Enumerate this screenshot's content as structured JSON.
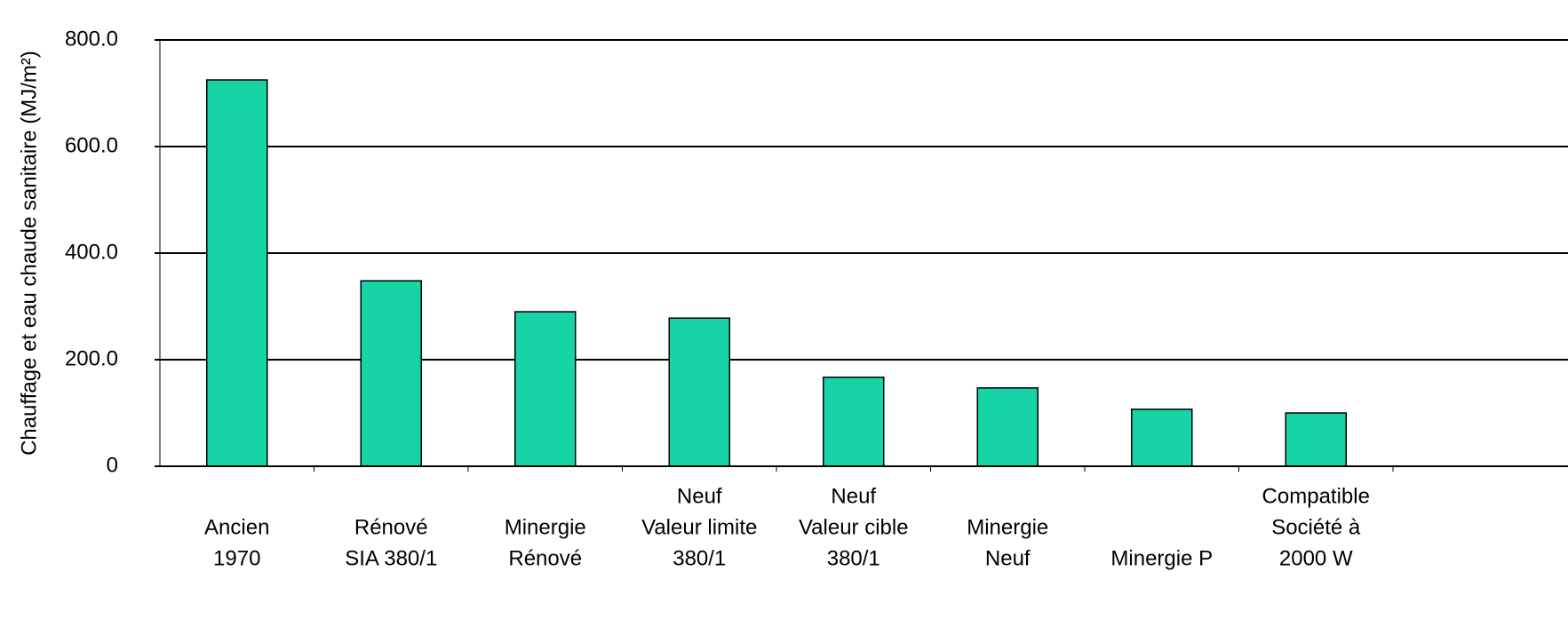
{
  "chart_data": {
    "type": "bar",
    "y_label": "Chauffage et eau chaude sanitaire (MJ/m²)",
    "categories": [
      [
        "Ancien",
        "1970"
      ],
      [
        "Rénové",
        "SIA 380/1"
      ],
      [
        "Minergie",
        "Rénové"
      ],
      [
        "Neuf",
        "Valeur limite",
        "380/1"
      ],
      [
        "Neuf",
        "Valeur cible",
        "380/1"
      ],
      [
        "Minergie",
        "Neuf"
      ],
      [
        "Minergie P"
      ],
      [
        "Compatible",
        "Société à",
        "2000 W"
      ]
    ],
    "values": [
      725,
      348,
      290,
      278,
      167,
      147,
      107,
      100
    ],
    "color": "#17d4a6",
    "ylim": [
      0,
      800
    ],
    "yticks": [
      0,
      {
        "value": 200,
        "label": "200.0"
      },
      {
        "value": 400,
        "label": "400.0"
      },
      {
        "value": 600,
        "label": "600.0"
      },
      {
        "value": 800,
        "label": "800.0"
      }
    ],
    "grid": true
  }
}
